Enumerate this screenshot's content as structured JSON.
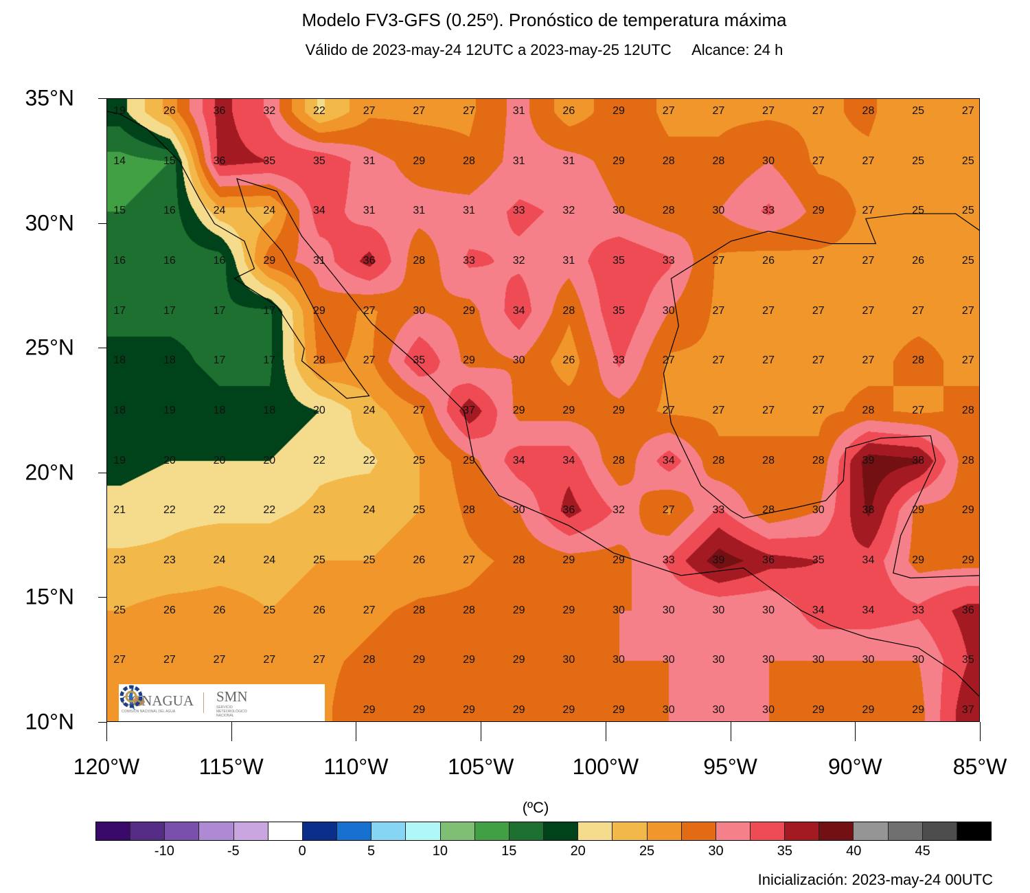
{
  "header": {
    "title": "Modelo FV3-GFS (0.25º). Pronóstico de temperatura máxima",
    "subtitle": "Válido de 2023-may-24 12UTC a 2023-may-25 12UTC     Alcance: 24 h"
  },
  "footer": {
    "init": "Inicialización: 2023-may-24 00UTC"
  },
  "logo": {
    "conagua": "CONAGUA",
    "conagua_sub": "COMISIÓN NACIONAL DEL AGUA",
    "smn": "SMN",
    "smn_sub": "SERVICIO METEOROLÓGICO NACIONAL"
  },
  "axes": {
    "lat_ticks": [
      "35°N",
      "30°N",
      "25°N",
      "20°N",
      "15°N",
      "10°N"
    ],
    "lat_values": [
      35,
      30,
      25,
      20,
      15,
      10
    ],
    "lon_ticks": [
      "120°W",
      "115°W",
      "110°W",
      "105°W",
      "100°W",
      "95°W",
      "90°W",
      "85°W"
    ],
    "lon_values": [
      -120,
      -115,
      -110,
      -105,
      -100,
      -95,
      -90,
      -85
    ],
    "lon_range": [
      -120,
      -85
    ],
    "lat_range": [
      10,
      35
    ]
  },
  "colorbar": {
    "unit": "(ºC)",
    "min": -15,
    "step": 2.5,
    "colors": [
      "#3a0a6a",
      "#552d86",
      "#7a50ad",
      "#ae8ad4",
      "#c9a6e0",
      "#ffffff",
      "#0a2e8a",
      "#1670d0",
      "#87d5f5",
      "#b0f7f7",
      "#7fbf73",
      "#41a043",
      "#1d7030",
      "#00431a",
      "#f5dc8c",
      "#f2b84a",
      "#f0962b",
      "#e26b14",
      "#f6808a",
      "#ee4b55",
      "#a31a22",
      "#731013",
      "#959595",
      "#707070",
      "#4d4d4d",
      "#000000"
    ],
    "labels": [
      "-10",
      "-5",
      "0",
      "5",
      "10",
      "15",
      "20",
      "25",
      "30",
      "35",
      "40",
      "45"
    ],
    "label_values": [
      -10,
      -5,
      0,
      5,
      10,
      15,
      20,
      25,
      30,
      35,
      40,
      45
    ]
  },
  "chart_data": {
    "type": "heatmap",
    "title": "Modelo FV3-GFS (0.25º). Pronóstico de temperatura máxima",
    "units": "ºC",
    "lons": [
      -119.5,
      -117.5,
      -115.5,
      -113.5,
      -111.5,
      -109.5,
      -107.5,
      -105.5,
      -103.5,
      -101.5,
      -99.5,
      -97.5,
      -95.5,
      -93.5,
      -91.5,
      -89.5,
      -87.5,
      -85.5
    ],
    "lats": [
      34.5,
      32.5,
      30.5,
      28.5,
      26.5,
      24.5,
      22.5,
      20.5,
      18.5,
      16.5,
      14.5,
      12.5,
      10.5
    ],
    "values": [
      [
        19,
        26,
        36,
        32,
        22,
        27,
        27,
        27,
        31,
        26,
        29,
        27,
        27,
        27,
        27,
        28,
        25,
        27
      ],
      [
        14,
        15,
        36,
        35,
        35,
        31,
        29,
        28,
        31,
        31,
        29,
        28,
        28,
        30,
        27,
        27,
        25,
        25
      ],
      [
        15,
        16,
        24,
        24,
        34,
        31,
        31,
        31,
        33,
        32,
        30,
        28,
        30,
        33,
        29,
        27,
        25,
        25
      ],
      [
        16,
        16,
        16,
        29,
        31,
        36,
        28,
        33,
        32,
        31,
        35,
        33,
        27,
        26,
        27,
        27,
        26,
        25
      ],
      [
        17,
        17,
        17,
        17,
        29,
        27,
        30,
        29,
        34,
        28,
        35,
        30,
        27,
        27,
        27,
        27,
        27,
        27
      ],
      [
        18,
        18,
        17,
        17,
        28,
        27,
        35,
        29,
        30,
        26,
        33,
        27,
        27,
        27,
        27,
        27,
        28,
        27
      ],
      [
        18,
        19,
        18,
        18,
        20,
        24,
        27,
        37,
        29,
        29,
        29,
        27,
        27,
        27,
        27,
        28,
        27,
        28
      ],
      [
        19,
        20,
        20,
        20,
        22,
        22,
        25,
        29,
        34,
        34,
        28,
        34,
        28,
        28,
        28,
        39,
        38,
        28
      ],
      [
        21,
        22,
        22,
        22,
        23,
        24,
        25,
        28,
        30,
        36,
        32,
        27,
        33,
        28,
        30,
        38,
        29,
        29
      ],
      [
        23,
        23,
        24,
        24,
        25,
        25,
        26,
        27,
        28,
        29,
        29,
        33,
        39,
        36,
        35,
        34,
        29,
        29
      ],
      [
        25,
        26,
        26,
        25,
        26,
        27,
        28,
        28,
        29,
        29,
        30,
        30,
        30,
        30,
        34,
        34,
        33,
        36
      ],
      [
        27,
        27,
        27,
        27,
        27,
        28,
        29,
        29,
        29,
        30,
        30,
        30,
        30,
        30,
        30,
        30,
        30,
        35
      ],
      [
        null,
        null,
        null,
        null,
        null,
        29,
        29,
        29,
        29,
        29,
        29,
        30,
        30,
        30,
        29,
        29,
        29,
        37
      ]
    ]
  }
}
